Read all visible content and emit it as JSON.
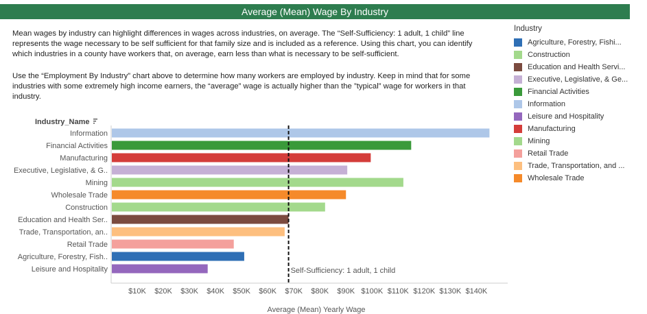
{
  "header": {
    "title": "Average (Mean) Wage By Industry"
  },
  "description": {
    "p1": "Mean wages by industry can highlight differences in wages across industries, on average. The “Self-Sufficiency: 1 adult, 1 child” line represents the wage necessary to be self sufficient for that family size and is included as a reference. Using this chart, you can identify which industries in a county have workers that, on average, earn less than what is necessary to be self-sufficient.",
    "p2": "Use the “Employment By Industry” chart above to determine how many workers are employed by industry. Keep in mind that for some industries with some extremely high income earners, the “average” wage is actually higher than the ”typical” wage for workers in that industry."
  },
  "legend": {
    "title": "Industry",
    "items": [
      {
        "label": "Agriculture, Forestry, Fishi...",
        "color": "#2f6fb5"
      },
      {
        "label": "Construction",
        "color": "#a3d98c"
      },
      {
        "label": "Education and Health Servi...",
        "color": "#7b4b3f"
      },
      {
        "label": "Executive, Legislative, & Ge...",
        "color": "#c5b0d5"
      },
      {
        "label": "Financial Activities",
        "color": "#3a9a3a"
      },
      {
        "label": "Information",
        "color": "#aec7e8"
      },
      {
        "label": "Leisure and Hospitality",
        "color": "#9467bd"
      },
      {
        "label": "Manufacturing",
        "color": "#d43d3a"
      },
      {
        "label": "Mining",
        "color": "#a3d98c"
      },
      {
        "label": "Retail Trade",
        "color": "#f4a09c"
      },
      {
        "label": "Trade, Transportation, and ...",
        "color": "#fdbf7f"
      },
      {
        "label": "Wholesale Trade",
        "color": "#f58a2a"
      }
    ]
  },
  "chart_data": {
    "type": "bar",
    "orientation": "horizontal",
    "y_header": "Industry_Name",
    "xlabel": "Average (Mean) Yearly Wage",
    "xlim": [
      0,
      152000
    ],
    "xticks": [
      10000,
      20000,
      30000,
      40000,
      50000,
      60000,
      70000,
      80000,
      90000,
      100000,
      110000,
      120000,
      130000,
      140000
    ],
    "xtick_labels": [
      "$10K",
      "$20K",
      "$30K",
      "$40K",
      "$50K",
      "$60K",
      "$70K",
      "$80K",
      "$90K",
      "$100K",
      "$110K",
      "$120K",
      "$130K",
      "$140K"
    ],
    "categories": [
      "Information",
      "Financial Activities",
      "Manufacturing",
      "Executive, Legislative, & G..",
      "Mining",
      "Wholesale Trade",
      "Construction",
      "Education and Health Ser..",
      "Trade, Transportation, an..",
      "Retail Trade",
      "Agriculture, Forestry, Fish..",
      "Leisure and Hospitality"
    ],
    "values": [
      145000,
      115000,
      99500,
      90500,
      112000,
      90000,
      82000,
      68000,
      66500,
      47000,
      51000,
      37000
    ],
    "colors": [
      "#aec7e8",
      "#3a9a3a",
      "#d43d3a",
      "#c5b0d5",
      "#a3d98c",
      "#f58a2a",
      "#a3d98c",
      "#7b4b3f",
      "#fdbf7f",
      "#f4a09c",
      "#2f6fb5",
      "#9467bd"
    ],
    "reference_line": {
      "label": "Self-Sufficiency: 1 adult, 1 child",
      "value": 68000
    }
  }
}
